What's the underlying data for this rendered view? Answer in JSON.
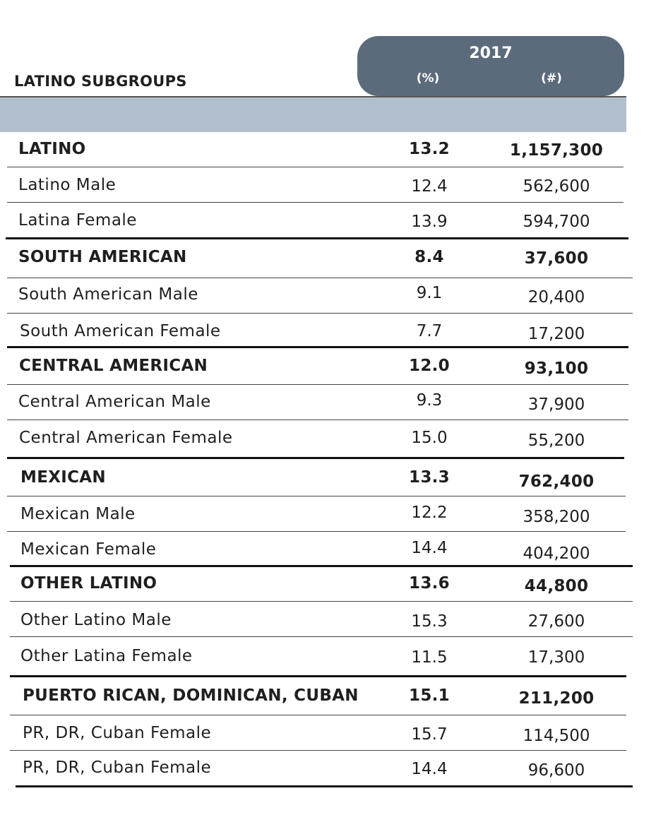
{
  "header": {
    "year": "2017",
    "col_pct": "(%)",
    "col_num": "(#)",
    "subgroups_label": "LATINO SUBGROUPS"
  },
  "rows": [
    {
      "name": "LATINO",
      "pct": "13.2",
      "num": "1,157,300",
      "group": true
    },
    {
      "name": "Latino Male",
      "pct": "12.4",
      "num": "562,600",
      "group": false
    },
    {
      "name": "Latina Female",
      "pct": "13.9",
      "num": "594,700",
      "group": false
    },
    {
      "name": "SOUTH AMERICAN",
      "pct": "8.4",
      "num": "37,600",
      "group": true
    },
    {
      "name": "South American Male",
      "pct": "9.1",
      "num": "20,400",
      "group": false
    },
    {
      "name": "South American Female",
      "pct": "7.7",
      "num": "17,200",
      "group": false
    },
    {
      "name": "CENTRAL AMERICAN",
      "pct": "12.0",
      "num": "93,100",
      "group": true
    },
    {
      "name": "Central American Male",
      "pct": "9.3",
      "num": "37,900",
      "group": false
    },
    {
      "name": "Central American Female",
      "pct": "15.0",
      "num": "55,200",
      "group": false
    },
    {
      "name": "MEXICAN",
      "pct": "13.3",
      "num": "762,400",
      "group": true
    },
    {
      "name": "Mexican Male",
      "pct": "12.2",
      "num": "358,200",
      "group": false
    },
    {
      "name": "Mexican Female",
      "pct": "14.4",
      "num": "404,200",
      "group": false
    },
    {
      "name": "OTHER LATINO",
      "pct": "13.6",
      "num": "44,800",
      "group": true
    },
    {
      "name": "Other Latino Male",
      "pct": "15.3",
      "num": "27,600",
      "group": false
    },
    {
      "name": "Other Latina Female",
      "pct": "11.5",
      "num": "17,300",
      "group": false
    },
    {
      "name": "PUERTO RICAN, DOMINICAN, CUBAN",
      "pct": "15.1",
      "num": "211,200",
      "group": true
    },
    {
      "name": "PR, DR, Cuban Female",
      "pct": "15.7",
      "num": "114,500",
      "group": false
    },
    {
      "name": "PR, DR, Cuban Female",
      "pct": "14.4",
      "num": "96,600",
      "group": false
    }
  ]
}
